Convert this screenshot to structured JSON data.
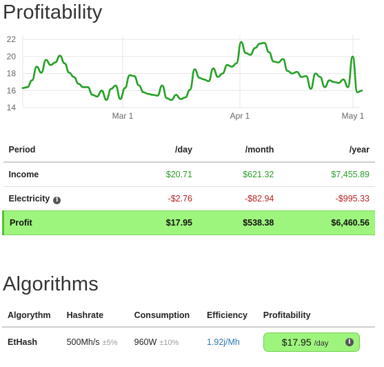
{
  "profitability": {
    "title": "Profitability"
  },
  "chart_data": {
    "type": "line",
    "x_tick_labels": [
      "Mar 1",
      "Apr 1",
      "May 1"
    ],
    "y_tick_labels": [
      "22",
      "20",
      "18",
      "16",
      "14"
    ],
    "ylim": [
      14,
      22.5
    ],
    "grid": true,
    "line_color": "#22a022",
    "series": [
      {
        "values": [
          16.3,
          16.4,
          17.2,
          18.8,
          18.1,
          19.6,
          19.0,
          19.3,
          20.1,
          19.2,
          18.1,
          17.6,
          16.8,
          16.4,
          16.4,
          15.5,
          15.3,
          16.0,
          14.9,
          16.2,
          16.6,
          15.0,
          16.3,
          17.8,
          17.7,
          16.6,
          15.8,
          15.6,
          15.5,
          15.4,
          16.6,
          15.1,
          14.9,
          15.5,
          15.0,
          15.2,
          16.1,
          18.5,
          17.5,
          17.3,
          17.1,
          18.6,
          17.6,
          18.0,
          19.0,
          18.8,
          19.2,
          21.7,
          20.4,
          20.2,
          21.0,
          21.5,
          21.6,
          20.5,
          19.4,
          19.3,
          19.7,
          18.3,
          18.0,
          18.2,
          17.6,
          17.7,
          16.2,
          18.0,
          17.6,
          16.4,
          17.2,
          17.0,
          16.9,
          17.3,
          16.4,
          20.0,
          15.8,
          16.0
        ]
      }
    ]
  },
  "period_table": {
    "headers": [
      "Period",
      "/day",
      "/month",
      "/year"
    ],
    "rows": [
      {
        "label": "Income",
        "day": "$20.71",
        "month": "$621.32",
        "year": "$7,455.89"
      },
      {
        "label": "Electricity",
        "day": "-$2.76",
        "month": "-$82.94",
        "year": "-$995.33"
      },
      {
        "label": "Profit",
        "day": "$17.95",
        "month": "$538.38",
        "year": "$6,460.56"
      }
    ],
    "info_icon": "i",
    "colors": {
      "positive": "#2a9c2a",
      "negative": "#b32222",
      "profit_bg": "#9ef57e"
    }
  },
  "algorithms": {
    "title": "Algorithms",
    "headers": [
      "Algorythm",
      "Hashrate",
      "Consumption",
      "Efficiency",
      "Profitability"
    ],
    "rows": [
      {
        "name": "EtHash",
        "hashrate": "500Mh/s",
        "hashrate_tol": "±5%",
        "consumption": "960W",
        "consumption_tol": "±10%",
        "efficiency": "1.92j/Mh",
        "profit_value": "$17.95",
        "profit_unit": "/day",
        "info_icon": "i"
      }
    ]
  }
}
